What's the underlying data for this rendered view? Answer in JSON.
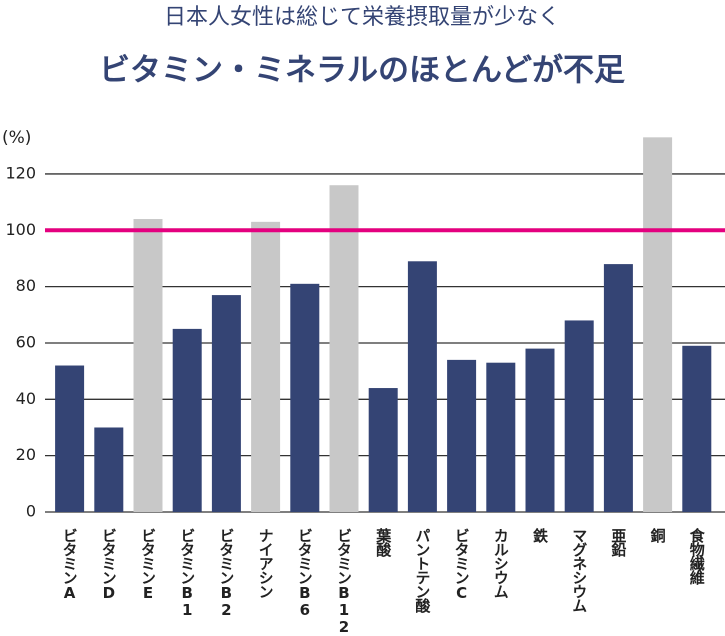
{
  "chart_data": {
    "type": "bar",
    "subtitle": "日本人女性は総じて栄養摂取量が少なく",
    "title": "ビタミン・ミネラルのほとんどが不足",
    "y_label": "(%)",
    "categories": [
      "ビタミンA",
      "ビタミンD",
      "ビタミンE",
      "ビタミンB1",
      "ビタミンB2",
      "ナイアシン",
      "ビタミンB6",
      "ビタミンB12",
      "葉酸",
      "パントテン酸",
      "ビタミンC",
      "カルシウム",
      "鉄",
      "マグネシウム",
      "亜鉛",
      "銅",
      "食物繊維"
    ],
    "values": [
      52,
      30,
      104,
      65,
      77,
      103,
      81,
      116,
      44,
      89,
      54,
      53,
      58,
      68,
      88,
      133,
      59
    ],
    "colors": [
      "#344474",
      "#344474",
      "#c8c8c8",
      "#344474",
      "#344474",
      "#c8c8c8",
      "#344474",
      "#c8c8c8",
      "#344474",
      "#344474",
      "#344474",
      "#344474",
      "#344474",
      "#344474",
      "#344474",
      "#c8c8c8",
      "#344474"
    ],
    "ylim": [
      0,
      135
    ],
    "yticks": [
      0,
      20,
      40,
      60,
      80,
      100,
      120
    ],
    "grid": true,
    "reference_line": {
      "value": 100,
      "color": "#e4007f"
    }
  }
}
